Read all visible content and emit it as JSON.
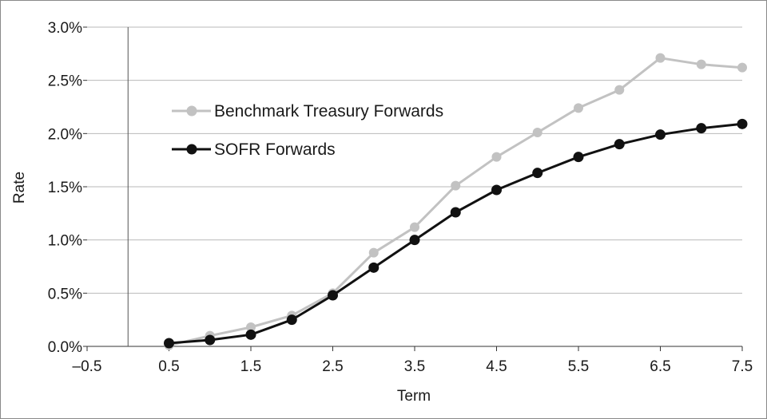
{
  "chart_data": {
    "type": "line",
    "xlabel": "Term",
    "ylabel": "Rate",
    "xlim": [
      -0.5,
      7.5
    ],
    "ylim": [
      0.0,
      3.0
    ],
    "x_ticks": [
      -0.5,
      0.5,
      1.5,
      2.5,
      3.5,
      4.5,
      5.5,
      6.5,
      7.5
    ],
    "x_tick_labels": [
      "–0.5",
      "0.5",
      "1.5",
      "2.5",
      "3.5",
      "4.5",
      "5.5",
      "6.5",
      "7.5"
    ],
    "y_ticks": [
      0.0,
      0.5,
      1.0,
      1.5,
      2.0,
      2.5,
      3.0
    ],
    "y_tick_labels": [
      "0.0%",
      "0.5%",
      "1.0%",
      "1.5%",
      "2.0%",
      "2.5%",
      "3.0%"
    ],
    "grid": "horizontal",
    "legend_position": "top-left",
    "x": [
      0.5,
      1.0,
      1.5,
      2.0,
      2.5,
      3.0,
      3.5,
      4.0,
      4.5,
      5.0,
      5.5,
      6.0,
      6.5,
      7.0,
      7.5
    ],
    "series": [
      {
        "name": "Benchmark Treasury Forwards",
        "color": "#c2c2c2",
        "values": [
          0.01,
          0.1,
          0.18,
          0.29,
          0.5,
          0.88,
          1.12,
          1.51,
          1.78,
          2.01,
          2.24,
          2.41,
          2.71,
          2.65,
          2.62
        ]
      },
      {
        "name": "SOFR Forwards",
        "color": "#111111",
        "values": [
          0.03,
          0.06,
          0.11,
          0.25,
          0.48,
          0.74,
          1.0,
          1.26,
          1.47,
          1.63,
          1.78,
          1.9,
          1.99,
          2.05,
          2.09
        ]
      }
    ]
  }
}
